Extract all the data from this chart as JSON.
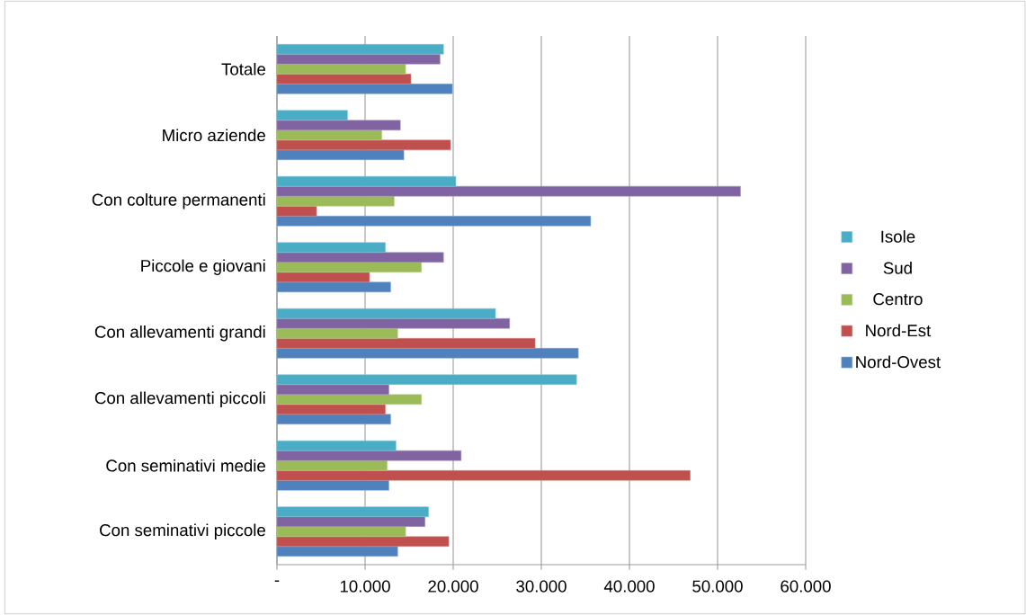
{
  "chart_data": {
    "type": "bar",
    "orientation": "horizontal",
    "categories": [
      "Totale",
      "Micro aziende",
      "Con colture permanenti",
      "Piccole e giovani",
      "Con allevamenti grandi",
      "Con allevamenti piccoli",
      "Con seminativi medie",
      "Con seminativi piccole"
    ],
    "series": [
      {
        "name": "Nord-Ovest",
        "color": "#4f81bd",
        "values": [
          19900,
          14400,
          35600,
          12900,
          34200,
          12900,
          12700,
          13700
        ]
      },
      {
        "name": "Nord-Est",
        "color": "#c0504d",
        "values": [
          15200,
          19700,
          4500,
          10500,
          29300,
          12300,
          46900,
          19500
        ]
      },
      {
        "name": "Centro",
        "color": "#9bbb59",
        "values": [
          14600,
          11900,
          13300,
          16400,
          13700,
          16400,
          12500,
          14600
        ]
      },
      {
        "name": "Sud",
        "color": "#8064a2",
        "values": [
          18500,
          14000,
          52600,
          18900,
          26400,
          12700,
          20900,
          16800
        ]
      },
      {
        "name": "Isole",
        "color": "#4bacc6",
        "values": [
          18900,
          8000,
          20300,
          12300,
          24800,
          34000,
          13500,
          17200
        ]
      }
    ],
    "xlim": [
      0,
      60000
    ],
    "xticks": [
      {
        "value": 0,
        "label": "-"
      },
      {
        "value": 10000,
        "label": "10.000"
      },
      {
        "value": 20000,
        "label": "20.000"
      },
      {
        "value": 30000,
        "label": "30.000"
      },
      {
        "value": 40000,
        "label": "40.000"
      },
      {
        "value": 50000,
        "label": "50.000"
      },
      {
        "value": 60000,
        "label": "60.000"
      }
    ],
    "grid": "x",
    "legend": "right"
  }
}
